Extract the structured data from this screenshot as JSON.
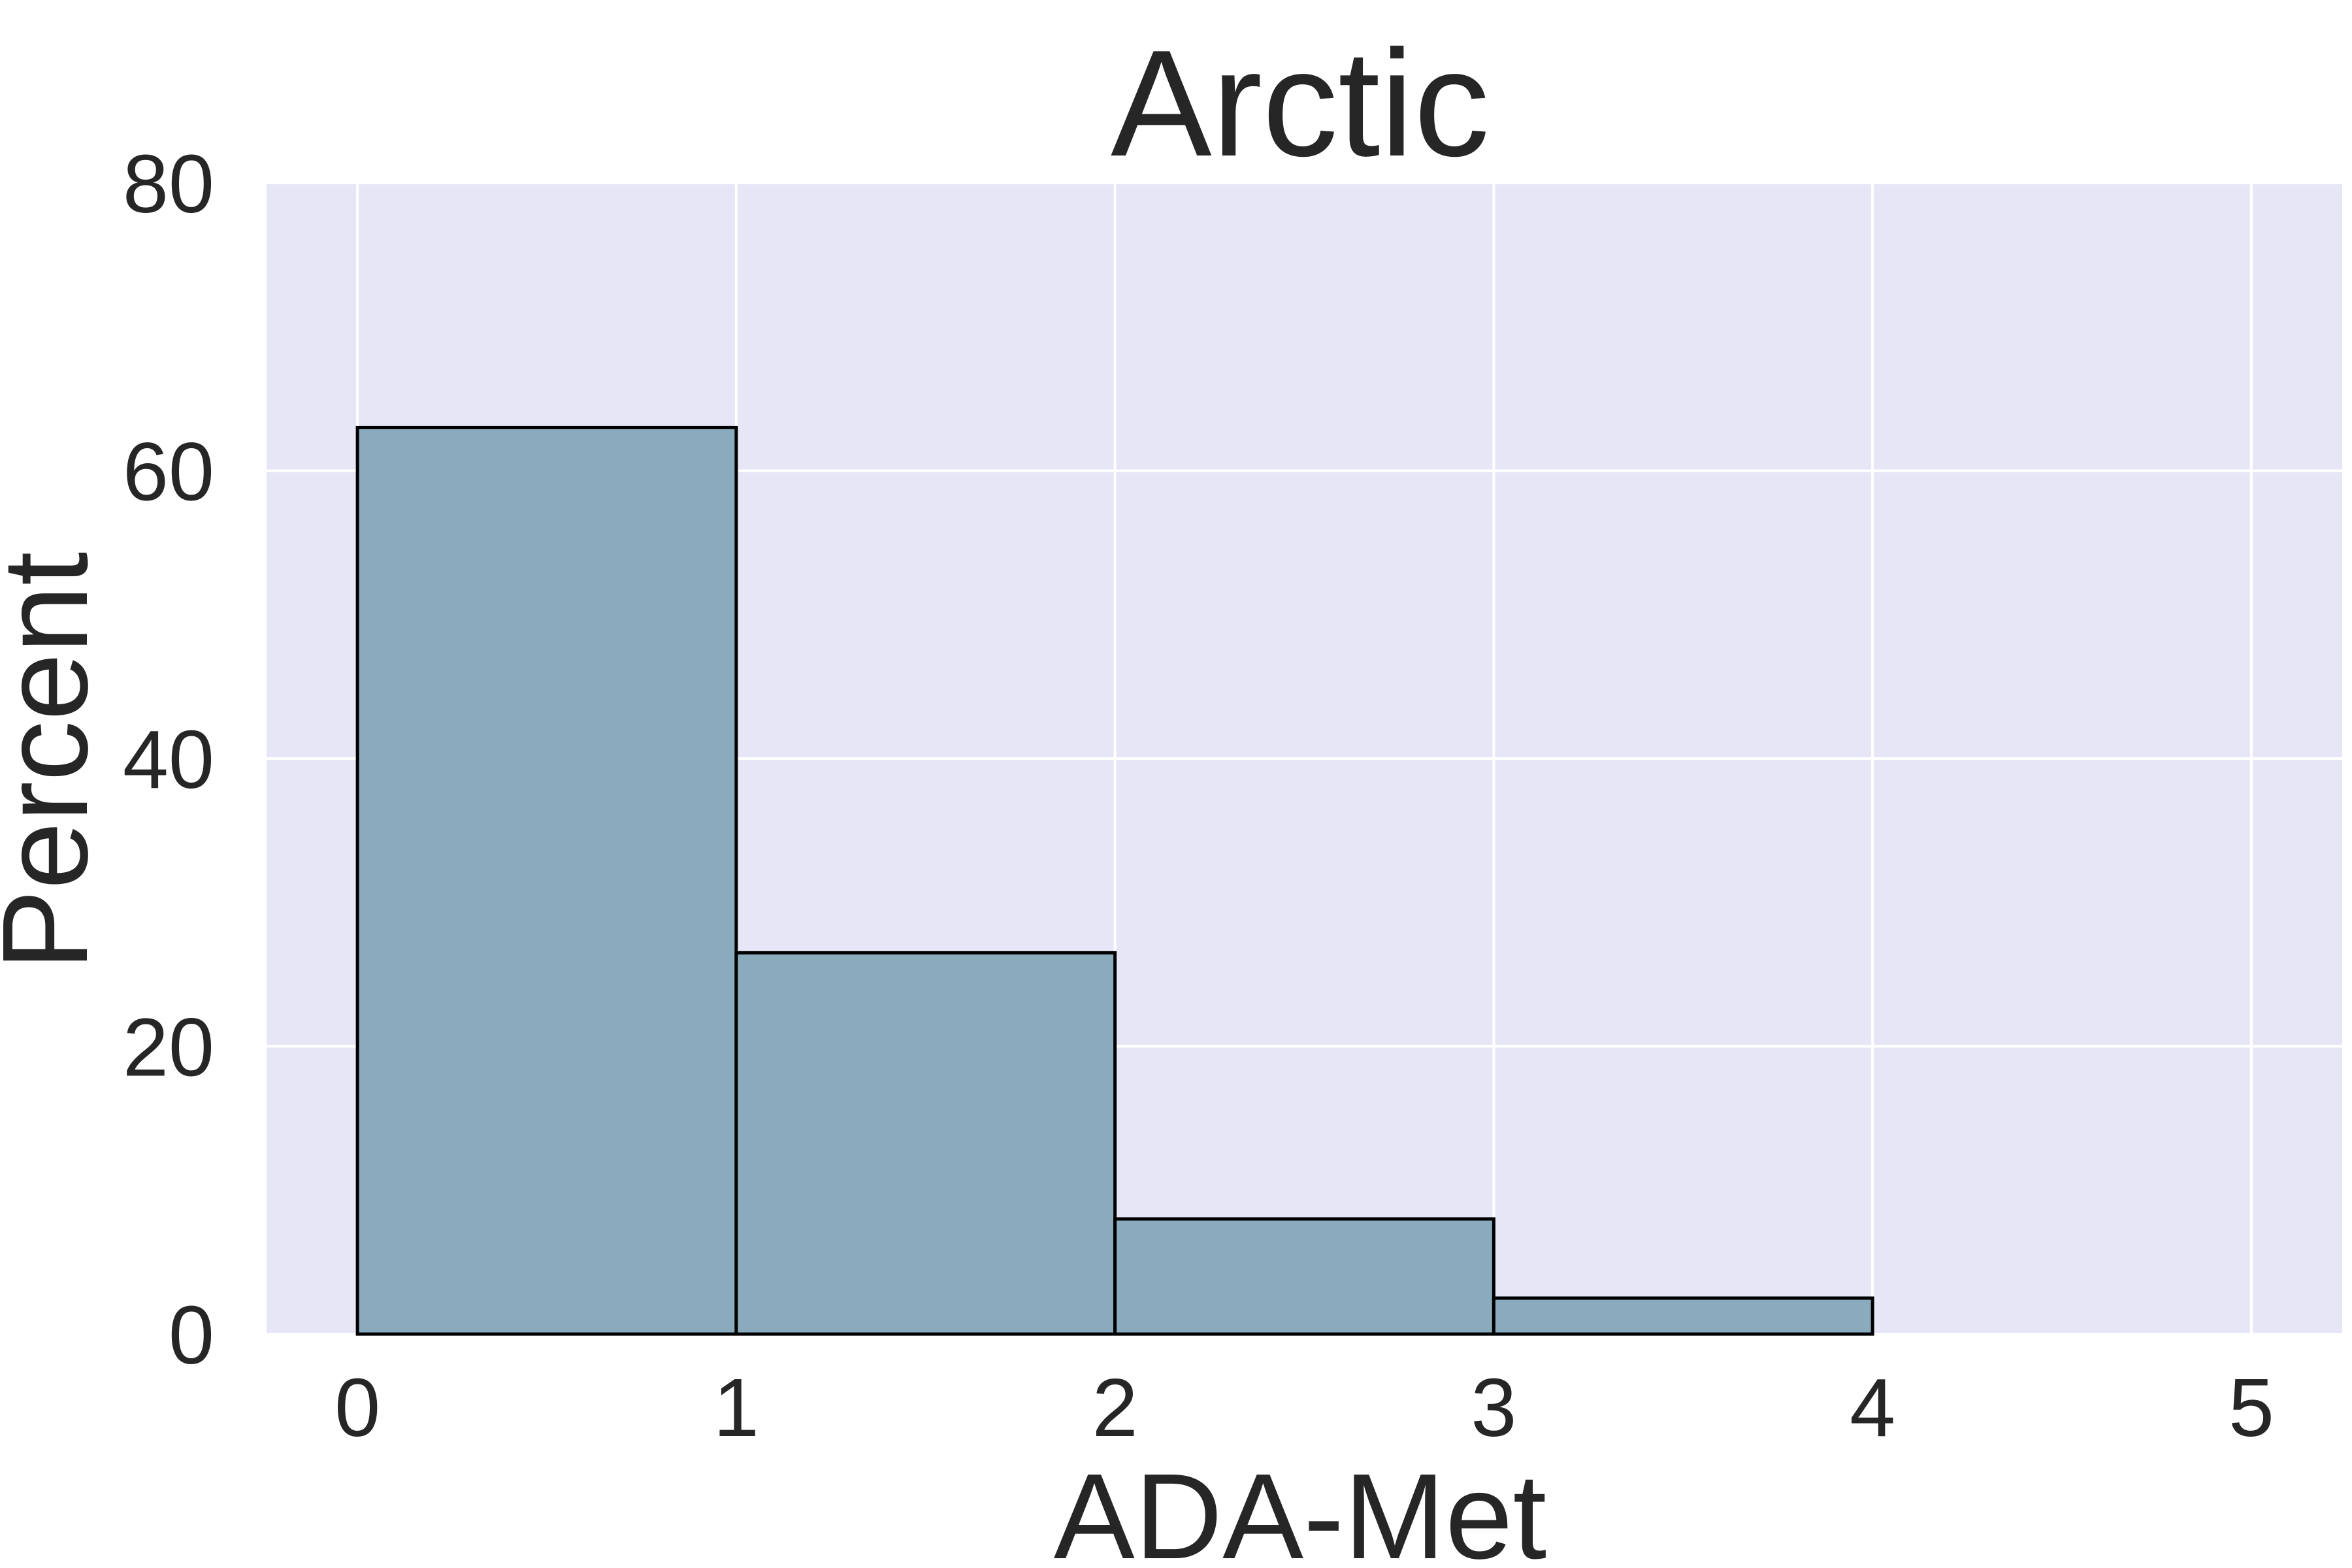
{
  "chart_data": {
    "type": "bar",
    "title": "Arctic",
    "xlabel": "ADA-Met",
    "ylabel": "Percent",
    "bins": [
      {
        "x0": 0,
        "x1": 1,
        "value": 63.0
      },
      {
        "x0": 1,
        "x1": 2,
        "value": 26.5
      },
      {
        "x0": 2,
        "x1": 3,
        "value": 8.0
      },
      {
        "x0": 3,
        "x1": 4,
        "value": 2.5
      }
    ],
    "xlim": [
      -0.24,
      5.24
    ],
    "ylim": [
      0,
      80
    ],
    "xticks": [
      0,
      1,
      2,
      3,
      4,
      5
    ],
    "yticks": [
      0,
      20,
      40,
      60,
      80
    ],
    "grid": true,
    "legend": "none",
    "colors": {
      "background": "#e6e6f7",
      "bar_fill": "#8aabbd",
      "bar_edge": "#000000",
      "grid": "#ffffff",
      "text": "#262626"
    }
  }
}
